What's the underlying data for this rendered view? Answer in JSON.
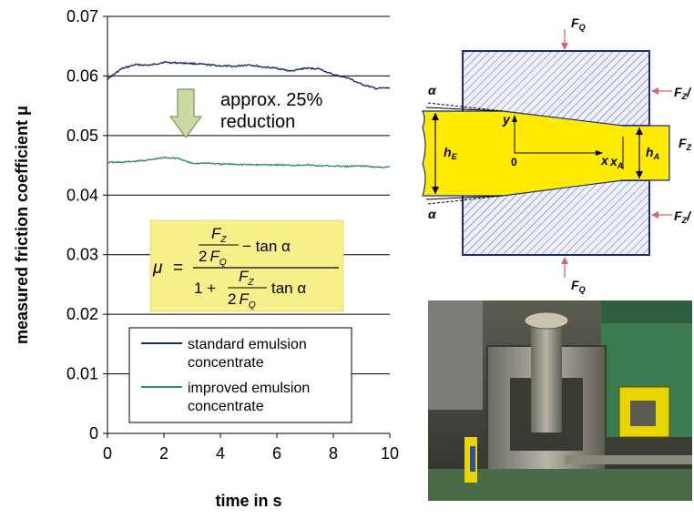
{
  "chart_data": {
    "type": "line",
    "ylabel": "measured friction coefficient μ",
    "xlabel": "time in s",
    "xlim": [
      0,
      10
    ],
    "ylim": [
      0,
      0.07
    ],
    "x_ticks": [
      "0",
      "2",
      "4",
      "6",
      "8",
      "10"
    ],
    "y_ticks": [
      "0",
      "0.01",
      "0.02",
      "0.03",
      "0.04",
      "0.05",
      "0.06",
      "0.07"
    ],
    "grid": "horizontal",
    "legend_position": "bottom-center",
    "series": [
      {
        "name": "standard emulsion concentrate",
        "color": "#1a2a6c",
        "x": [
          0,
          0.5,
          1,
          1.5,
          2,
          2.5,
          3,
          3.5,
          4,
          4.5,
          5,
          5.5,
          6,
          6.5,
          7,
          7.5,
          8,
          8.5,
          9,
          9.5,
          10
        ],
        "y": [
          0.0595,
          0.0612,
          0.0619,
          0.0618,
          0.0623,
          0.0622,
          0.0621,
          0.0619,
          0.0617,
          0.0616,
          0.0619,
          0.0615,
          0.0613,
          0.0608,
          0.0613,
          0.0612,
          0.0602,
          0.0597,
          0.0586,
          0.0579,
          0.058
        ]
      },
      {
        "name": "improved emulsion concentrate",
        "color": "#3a8a6a",
        "x": [
          0,
          0.5,
          1,
          1.5,
          2,
          2.5,
          3,
          3.5,
          4,
          4.5,
          5,
          5.5,
          6,
          6.5,
          7,
          7.5,
          8,
          8.5,
          9,
          9.5,
          10
        ],
        "y": [
          0.0455,
          0.0455,
          0.0457,
          0.0459,
          0.0463,
          0.0462,
          0.0453,
          0.0454,
          0.0452,
          0.0452,
          0.0451,
          0.0451,
          0.0451,
          0.045,
          0.0451,
          0.0449,
          0.0449,
          0.0448,
          0.0449,
          0.0447,
          0.0447
        ]
      }
    ],
    "annotation": "approx. 25% reduction",
    "formula": {
      "lhs": "μ",
      "equals": "=",
      "num_f": "F",
      "num_fsub": "Z",
      "num_2": "2",
      "num_ff": "F",
      "num_ffsub": "Q",
      "num_rest": "− tan  α",
      "den_1plus": "1 +",
      "den_f": "F",
      "den_fsub": "Z",
      "den_2": "2",
      "den_ff": "F",
      "den_ffsub": "Q",
      "den_rest": "tan  α"
    },
    "colors": {
      "formula_box": "#f7ef8a",
      "arrow_fill": "#c8d9a3",
      "arrow_stroke": "#7d9a54"
    }
  },
  "diagram": {
    "labels": {
      "fq_top": "F",
      "fq_top_sub": "Q",
      "fq_bottom": "F",
      "fq_bottom_sub": "Q",
      "fz_right_top": "F",
      "fz_right_top_sub": "Z",
      "fz_right_top_suffix": "/",
      "fz_right_bottom": "F",
      "fz_right_bottom_sub": "Z",
      "fz_right_bottom_suffix": "/",
      "fz_out": "F",
      "fz_out_sub": "Z",
      "alpha_top": "α",
      "alpha_bottom": "α",
      "h_e": "h",
      "h_e_sub": "E",
      "h_a": "h",
      "h_a_sub": "A",
      "y_axis": "y",
      "x_axis": "x",
      "origin": "0",
      "x_a": "x",
      "x_a_sub": "A"
    },
    "colors": {
      "die_fill": "#e8ecf8",
      "die_border": "#1a2a8a",
      "hatch": "#1a2a8a",
      "strip": "#ffea00",
      "force_arrow": "#e06070"
    }
  },
  "photo": {
    "description_icon": "test-rig-photo"
  }
}
